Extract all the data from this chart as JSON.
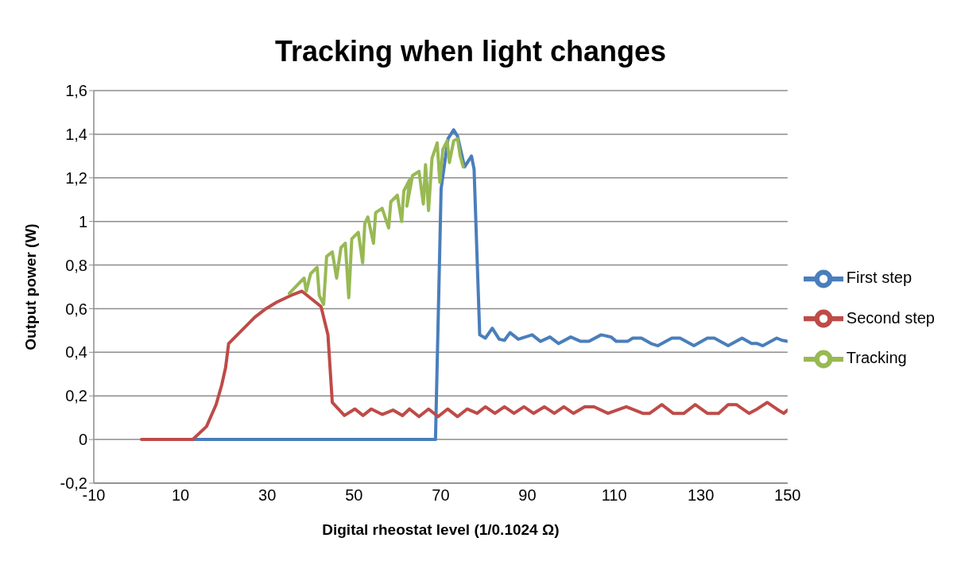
{
  "chart_data": {
    "type": "line",
    "title": "Tracking when light changes",
    "xlabel": "Digital rheostat level (1/0.1024 Ω)",
    "ylabel": "Output power (W)",
    "xlim": [
      -10,
      150
    ],
    "xticks": [
      -10,
      10,
      30,
      50,
      70,
      90,
      110,
      130,
      150
    ],
    "ylim": [
      -0.2,
      1.6
    ],
    "yticks": [
      {
        "value": -0.2,
        "label": "-0,2"
      },
      0,
      {
        "value": 0.2,
        "label": "0,2"
      },
      {
        "value": 0.4,
        "label": "0,4"
      },
      {
        "value": 0.6,
        "label": "0,6"
      },
      {
        "value": 0.8,
        "label": "0,8"
      },
      1,
      {
        "value": 1.2,
        "label": "1,2"
      },
      {
        "value": 1.4,
        "label": "1,4"
      },
      {
        "value": 1.6,
        "label": "1,6"
      }
    ],
    "grid": "y",
    "legend": "right",
    "marker": "none",
    "line_style": "solid",
    "series": [
      {
        "name": "First step",
        "color": "#4a7ebb",
        "x": [
          12.8,
          68.8,
          70.1,
          71.7,
          73,
          73.9,
          75.5,
          77.1,
          77.7,
          79,
          80.3,
          81.9,
          83.5,
          84.7,
          86,
          87.9,
          91.1,
          93,
          95.2,
          97.2,
          100,
          102.3,
          104.2,
          107,
          109.3,
          110.5,
          113.1,
          114.3,
          116.3,
          118.5,
          120.1,
          123.3,
          125.2,
          128.4,
          131.5,
          133.1,
          136.3,
          139.5,
          141.7,
          143,
          144.3,
          147.5,
          148.7,
          150
        ],
        "values": [
          0,
          0,
          1.15,
          1.38,
          1.42,
          1.39,
          1.25,
          1.3,
          1.24,
          0.48,
          0.465,
          0.51,
          0.46,
          0.455,
          0.49,
          0.46,
          0.48,
          0.45,
          0.47,
          0.44,
          0.47,
          0.45,
          0.45,
          0.48,
          0.47,
          0.45,
          0.45,
          0.465,
          0.465,
          0.44,
          0.43,
          0.465,
          0.465,
          0.43,
          0.465,
          0.465,
          0.43,
          0.465,
          0.44,
          0.44,
          0.43,
          0.465,
          0.455,
          0.45
        ]
      },
      {
        "name": "Second step",
        "color": "#be4b48",
        "x": [
          1,
          12.8,
          16,
          18.2,
          19.5,
          20.4,
          21.1,
          24.6,
          27.1,
          29.7,
          32.2,
          35.4,
          38,
          42.4,
          44,
          45,
          47.8,
          50.2,
          52.1,
          54,
          56.5,
          59,
          61.2,
          62.8,
          65,
          67.2,
          69.4,
          71.6,
          73.9,
          76.1,
          78.4,
          80.3,
          82.5,
          84.7,
          86.9,
          89.2,
          91.4,
          93.9,
          96.2,
          98.4,
          100.6,
          103.2,
          105.4,
          108.6,
          112.8,
          116.6,
          118.2,
          121,
          123.6,
          126.1,
          128.7,
          131.5,
          134.1,
          136.3,
          138.2,
          141.1,
          143,
          145.3,
          147.5,
          149.1,
          150
        ],
        "values": [
          0,
          0,
          0.06,
          0.16,
          0.25,
          0.33,
          0.44,
          0.51,
          0.56,
          0.6,
          0.63,
          0.66,
          0.68,
          0.61,
          0.48,
          0.17,
          0.11,
          0.14,
          0.11,
          0.14,
          0.115,
          0.135,
          0.11,
          0.14,
          0.105,
          0.14,
          0.105,
          0.14,
          0.105,
          0.14,
          0.12,
          0.15,
          0.12,
          0.15,
          0.12,
          0.15,
          0.12,
          0.15,
          0.12,
          0.15,
          0.12,
          0.15,
          0.15,
          0.12,
          0.15,
          0.12,
          0.12,
          0.16,
          0.12,
          0.12,
          0.16,
          0.12,
          0.12,
          0.16,
          0.16,
          0.12,
          0.14,
          0.17,
          0.14,
          0.12,
          0.135
        ]
      },
      {
        "name": "Tracking",
        "color": "#98b954",
        "x": [
          35.1,
          37,
          38.5,
          39,
          40,
          41.5,
          42,
          43,
          43.7,
          45,
          46,
          47,
          48,
          48.8,
          49.5,
          51,
          52,
          52.5,
          53.2,
          54.5,
          55,
          56.5,
          58,
          58.5,
          60,
          61,
          61.5,
          62.8,
          62.2,
          63.5,
          65,
          66,
          66.5,
          67.2,
          68,
          69.2,
          69.8,
          70.5,
          71.5,
          72,
          73,
          73.9,
          74.5,
          75.2
        ],
        "values": [
          0.67,
          0.71,
          0.74,
          0.68,
          0.76,
          0.79,
          0.66,
          0.62,
          0.84,
          0.86,
          0.74,
          0.88,
          0.9,
          0.65,
          0.92,
          0.95,
          0.81,
          0.99,
          1.02,
          0.9,
          1.04,
          1.06,
          0.97,
          1.09,
          1.12,
          1,
          1.14,
          1.19,
          1.07,
          1.21,
          1.23,
          1.08,
          1.26,
          1.05,
          1.29,
          1.36,
          1.18,
          1.33,
          1.37,
          1.27,
          1.37,
          1.38,
          1.3,
          1.25
        ]
      }
    ]
  }
}
